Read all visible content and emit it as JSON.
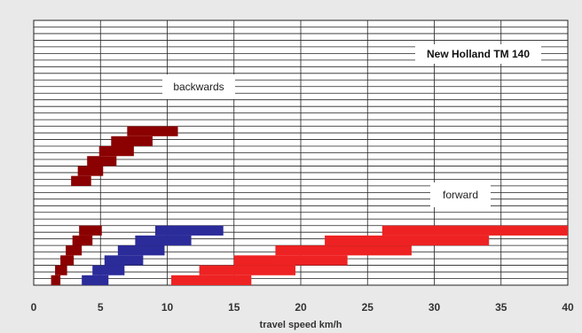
{
  "chart_data": {
    "type": "bar",
    "title": "New Holland TM 140",
    "xlabel": "travel speed km/h",
    "ylabel": "",
    "xlim": [
      0,
      40
    ],
    "xticks": [
      "0",
      "5",
      "10",
      "15",
      "20",
      "25",
      "30",
      "35",
      "40"
    ],
    "grid": true,
    "annotations": [
      "backwards",
      "forward"
    ],
    "colors": {
      "backwards": "#8b0000",
      "forward_low": "#8b0000",
      "forward_mid": "#2b2b9a",
      "forward_high": "#ee2222"
    },
    "series": [
      {
        "name": "backwards",
        "gears": [
          {
            "from": 2.8,
            "to": 4.3
          },
          {
            "from": 3.3,
            "to": 5.2
          },
          {
            "from": 4.0,
            "to": 6.2
          },
          {
            "from": 4.9,
            "to": 7.5
          },
          {
            "from": 5.8,
            "to": 8.9
          },
          {
            "from": 7.0,
            "to": 10.8
          }
        ]
      },
      {
        "name": "forward_low",
        "gears": [
          {
            "from": 1.3,
            "to": 2.0
          },
          {
            "from": 1.6,
            "to": 2.5
          },
          {
            "from": 2.0,
            "to": 3.0
          },
          {
            "from": 2.4,
            "to": 3.6
          },
          {
            "from": 2.9,
            "to": 4.4
          },
          {
            "from": 3.4,
            "to": 5.1
          }
        ]
      },
      {
        "name": "forward_mid",
        "gears": [
          {
            "from": 3.6,
            "to": 5.6
          },
          {
            "from": 4.4,
            "to": 6.8
          },
          {
            "from": 5.3,
            "to": 8.2
          },
          {
            "from": 6.3,
            "to": 9.8
          },
          {
            "from": 7.6,
            "to": 11.8
          },
          {
            "from": 9.1,
            "to": 14.2
          }
        ]
      },
      {
        "name": "forward_high",
        "gears": [
          {
            "from": 10.3,
            "to": 16.3
          },
          {
            "from": 12.4,
            "to": 19.6
          },
          {
            "from": 15.0,
            "to": 23.5
          },
          {
            "from": 18.1,
            "to": 28.3
          },
          {
            "from": 21.8,
            "to": 34.1
          },
          {
            "from": 26.1,
            "to": 40.0
          }
        ]
      }
    ]
  }
}
